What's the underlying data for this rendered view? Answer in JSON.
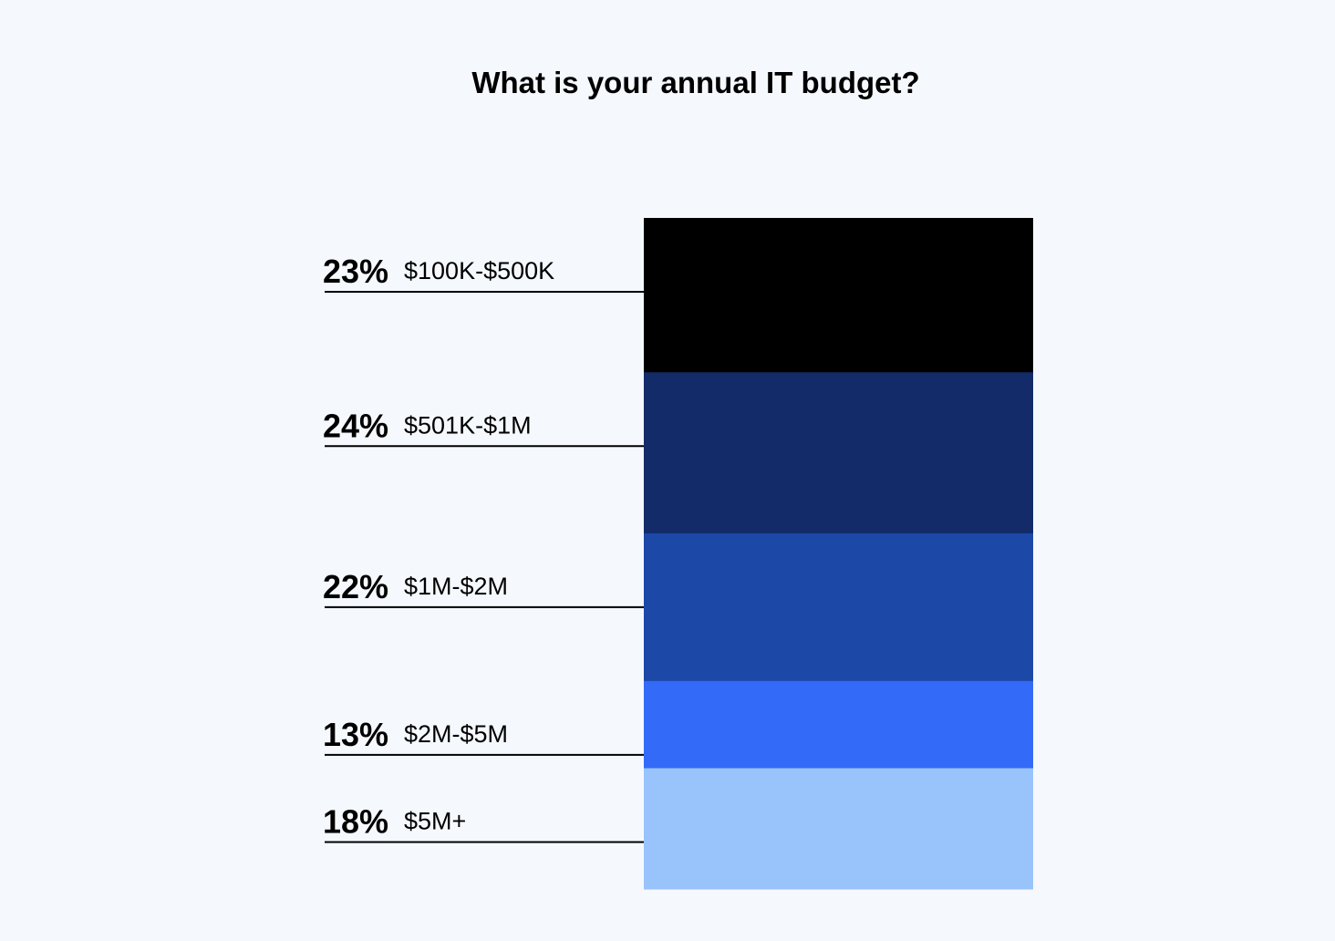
{
  "chart_data": {
    "type": "bar",
    "stacked": true,
    "title": "What is your annual IT budget?",
    "categories": [
      "$100K-$500K",
      "$501K-$1M",
      "$1M-$2M",
      "$2M-$5M",
      "$5M+"
    ],
    "values": [
      23,
      24,
      22,
      13,
      18
    ],
    "value_labels": [
      "23%",
      "24%",
      "22%",
      "13%",
      "18%"
    ],
    "colors": [
      "#000000",
      "#132b69",
      "#1c48a8",
      "#336af7",
      "#99c3fb"
    ],
    "unit": "%",
    "grid": false,
    "legend": "left"
  }
}
